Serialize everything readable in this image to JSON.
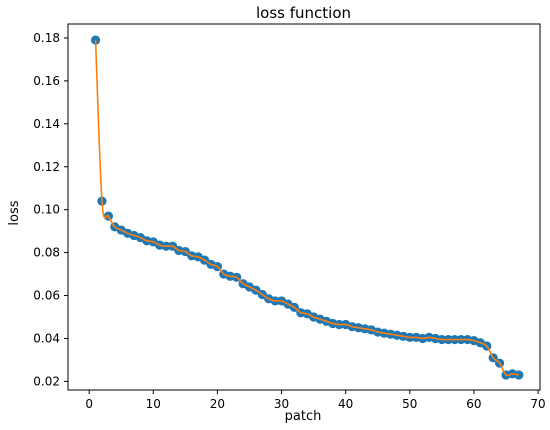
{
  "chart_data": {
    "type": "line",
    "title": "loss function",
    "xlabel": "patch",
    "ylabel": "loss",
    "xlim": [
      -3.3,
      70.3
    ],
    "ylim": [
      0.016,
      0.1865
    ],
    "xticks": [
      0,
      10,
      20,
      30,
      40,
      50,
      60,
      70
    ],
    "yticks": [
      0.02,
      0.04,
      0.06,
      0.08,
      0.1,
      0.12,
      0.14,
      0.16,
      0.18
    ],
    "ytick_labels": [
      "0.02",
      "0.04",
      "0.06",
      "0.08",
      "0.10",
      "0.12",
      "0.14",
      "0.16",
      "0.18"
    ],
    "grid": false,
    "marker_color": "#1f77b4",
    "line_color": "#ff7f0e",
    "series": [
      {
        "x": [
          1,
          2,
          3,
          4,
          5,
          6,
          7,
          8,
          9,
          10,
          11,
          12,
          13,
          14,
          15,
          16,
          17,
          18,
          19,
          20,
          21,
          22,
          23,
          24,
          25,
          26,
          27,
          28,
          29,
          30,
          31,
          32,
          33,
          34,
          35,
          36,
          37,
          38,
          39,
          40,
          41,
          42,
          43,
          44,
          45,
          46,
          47,
          48,
          49,
          50,
          51,
          52,
          53,
          54,
          55,
          56,
          57,
          58,
          59,
          60,
          61,
          62,
          63,
          64,
          65,
          66,
          67
        ],
        "y": [
          0.179,
          0.104,
          0.097,
          0.092,
          0.0905,
          0.089,
          0.088,
          0.087,
          0.0855,
          0.085,
          0.0835,
          0.083,
          0.083,
          0.081,
          0.0805,
          0.0785,
          0.078,
          0.0765,
          0.0745,
          0.0735,
          0.07,
          0.069,
          0.0685,
          0.0655,
          0.064,
          0.0625,
          0.0605,
          0.0585,
          0.0575,
          0.0575,
          0.056,
          0.0545,
          0.052,
          0.0515,
          0.05,
          0.049,
          0.048,
          0.047,
          0.0465,
          0.0465,
          0.0455,
          0.045,
          0.0445,
          0.044,
          0.043,
          0.0425,
          0.042,
          0.0415,
          0.041,
          0.0405,
          0.0405,
          0.04,
          0.0405,
          0.04,
          0.0395,
          0.0395,
          0.0395,
          0.0395,
          0.0395,
          0.039,
          0.038,
          0.0365,
          0.031,
          0.0285,
          0.023,
          0.0235,
          0.023
        ]
      }
    ]
  }
}
